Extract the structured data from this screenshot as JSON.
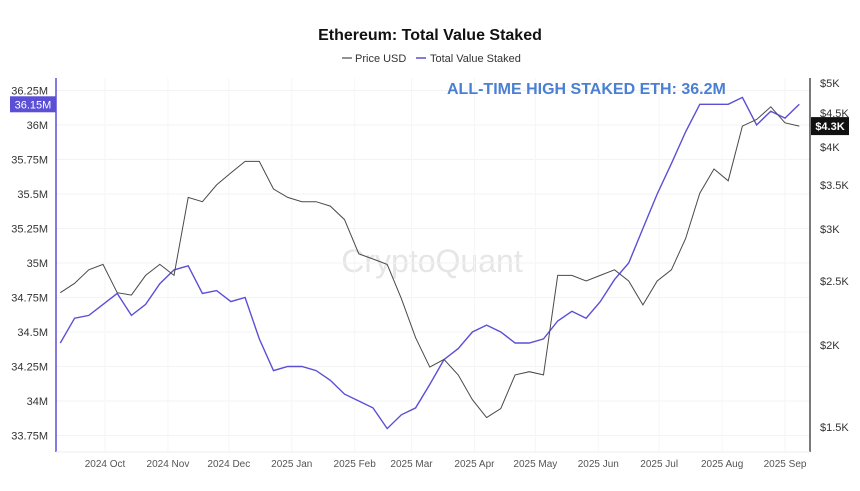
{
  "chart_data": {
    "type": "line",
    "title": "Ethereum: Total Value Staked",
    "legend": {
      "placement": "top-center",
      "entries": [
        "Price USD",
        "Total Value Staked"
      ]
    },
    "watermark": "CryptoQuant",
    "annotation": "ALL-TIME HIGH STAKED ETH: 36.2M",
    "colors": {
      "price": "#4a4a4a",
      "staked": "#5b4fd6",
      "annotation": "#4a7fd4",
      "right_tag": "#111111"
    },
    "grid": true,
    "x_ticks": [
      {
        "date": "2024-10-01",
        "label": "2024 Oct"
      },
      {
        "date": "2024-11-01",
        "label": "2024 Nov"
      },
      {
        "date": "2024-12-01",
        "label": "2024 Dec"
      },
      {
        "date": "2025-01-01",
        "label": "2025 Jan"
      },
      {
        "date": "2025-02-01",
        "label": "2025 Feb"
      },
      {
        "date": "2025-03-01",
        "label": "2025 Mar"
      },
      {
        "date": "2025-04-01",
        "label": "2025 Apr"
      },
      {
        "date": "2025-05-01",
        "label": "2025 May"
      },
      {
        "date": "2025-06-01",
        "label": "2025 Jun"
      },
      {
        "date": "2025-07-01",
        "label": "2025 Jul"
      },
      {
        "date": "2025-08-01",
        "label": "2025 Aug"
      },
      {
        "date": "2025-09-01",
        "label": "2025 Sep"
      }
    ],
    "y_left": {
      "ylim": [
        33.7,
        36.3
      ],
      "unit": "M",
      "ticks": [
        {
          "v": 36.25,
          "label": "36.25M"
        },
        {
          "v": 36,
          "label": "36M"
        },
        {
          "v": 35.75,
          "label": "35.75M"
        },
        {
          "v": 35.5,
          "label": "35.5M"
        },
        {
          "v": 35.25,
          "label": "35.25M"
        },
        {
          "v": 35,
          "label": "35M"
        },
        {
          "v": 34.75,
          "label": "34.75M"
        },
        {
          "v": 34.5,
          "label": "34.5M"
        },
        {
          "v": 34.25,
          "label": "34.25M"
        },
        {
          "v": 34,
          "label": "34M"
        },
        {
          "v": 33.75,
          "label": "33.75M"
        }
      ],
      "current_tag": {
        "v": 36.15,
        "label": "36.15M"
      }
    },
    "y_right": {
      "scale": "log",
      "ticks": [
        {
          "v": 5000,
          "label": "$5K"
        },
        {
          "v": 4500,
          "label": "$4.5K"
        },
        {
          "v": 4000,
          "label": "$4K"
        },
        {
          "v": 3500,
          "label": "$3.5K"
        },
        {
          "v": 3000,
          "label": "$3K"
        },
        {
          "v": 2500,
          "label": "$2.5K"
        },
        {
          "v": 2000,
          "label": "$2K"
        },
        {
          "v": 1500,
          "label": "$1.5K"
        }
      ],
      "current_tag": {
        "v": 4300,
        "label": "$4.3K"
      }
    },
    "dates": [
      "2024-09-09",
      "2024-09-16",
      "2024-09-23",
      "2024-09-30",
      "2024-10-07",
      "2024-10-14",
      "2024-10-21",
      "2024-10-28",
      "2024-11-04",
      "2024-11-11",
      "2024-11-18",
      "2024-11-25",
      "2024-12-02",
      "2024-12-09",
      "2024-12-16",
      "2024-12-23",
      "2024-12-30",
      "2025-01-06",
      "2025-01-13",
      "2025-01-20",
      "2025-01-27",
      "2025-02-03",
      "2025-02-10",
      "2025-02-17",
      "2025-02-24",
      "2025-03-03",
      "2025-03-10",
      "2025-03-17",
      "2025-03-24",
      "2025-03-31",
      "2025-04-07",
      "2025-04-14",
      "2025-04-21",
      "2025-04-28",
      "2025-05-05",
      "2025-05-12",
      "2025-05-19",
      "2025-05-26",
      "2025-06-02",
      "2025-06-09",
      "2025-06-16",
      "2025-06-23",
      "2025-06-30",
      "2025-07-07",
      "2025-07-14",
      "2025-07-21",
      "2025-07-28",
      "2025-08-04",
      "2025-08-11",
      "2025-08-18",
      "2025-08-25",
      "2025-09-01",
      "2025-09-08"
    ],
    "series": [
      {
        "name": "Total Value Staked",
        "axis": "left",
        "values": [
          34.42,
          34.6,
          34.62,
          34.7,
          34.78,
          34.62,
          34.7,
          34.85,
          34.95,
          34.98,
          34.78,
          34.8,
          34.72,
          34.75,
          34.45,
          34.22,
          34.25,
          34.25,
          34.22,
          34.15,
          34.05,
          34.0,
          33.95,
          33.8,
          33.9,
          33.95,
          34.12,
          34.3,
          34.38,
          34.5,
          34.55,
          34.5,
          34.42,
          34.42,
          34.45,
          34.58,
          34.65,
          34.6,
          34.72,
          34.88,
          35.0,
          35.25,
          35.5,
          35.72,
          35.95,
          36.15,
          36.15,
          36.15,
          36.2,
          36.0,
          36.1,
          36.05,
          36.15
        ]
      },
      {
        "name": "Price USD",
        "axis": "right",
        "values": [
          2400,
          2480,
          2600,
          2650,
          2400,
          2380,
          2550,
          2650,
          2550,
          3350,
          3300,
          3500,
          3650,
          3800,
          3800,
          3450,
          3350,
          3300,
          3300,
          3250,
          3100,
          2750,
          2700,
          2650,
          2350,
          2050,
          1850,
          1900,
          1800,
          1650,
          1550,
          1600,
          1800,
          1820,
          1800,
          2550,
          2550,
          2500,
          2550,
          2600,
          2500,
          2300,
          2500,
          2600,
          2900,
          3400,
          3700,
          3550,
          4300,
          4400,
          4600,
          4350,
          4300
        ]
      }
    ]
  }
}
